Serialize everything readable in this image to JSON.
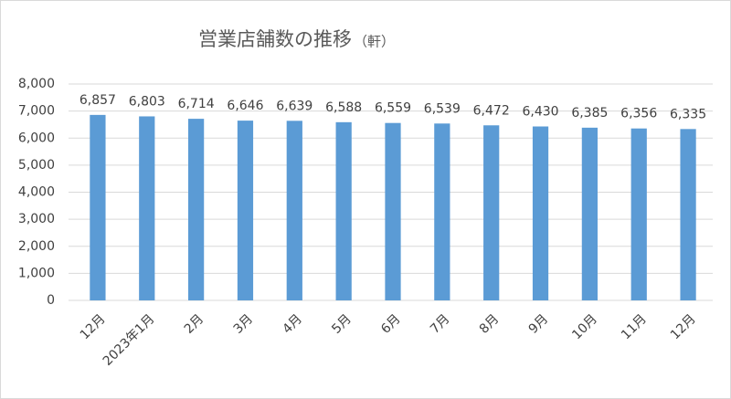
{
  "chart_data": {
    "type": "bar",
    "title": "営業店舗数の推移",
    "unit": "（軒）",
    "categories": [
      "12月",
      "2023年1月",
      "2月",
      "3月",
      "4月",
      "5月",
      "6月",
      "7月",
      "8月",
      "9月",
      "10月",
      "11月",
      "12月"
    ],
    "values": [
      6857,
      6803,
      6714,
      6646,
      6639,
      6588,
      6559,
      6539,
      6472,
      6430,
      6385,
      6356,
      6335
    ],
    "value_labels": [
      "6,857",
      "6,803",
      "6,714",
      "6,646",
      "6,639",
      "6,588",
      "6,559",
      "6,539",
      "6,472",
      "6,430",
      "6,385",
      "6,356",
      "6,335"
    ],
    "color": "#5b9bd5",
    "ylim": [
      0,
      8000
    ],
    "yticks": [
      0,
      {
        "value": 1000,
        "label": "1,000"
      },
      {
        "value": 2000,
        "label": "2,000"
      },
      {
        "value": 3000,
        "label": "3,000"
      },
      {
        "value": 4000,
        "label": "4,000"
      },
      {
        "value": 5000,
        "label": "5,000"
      },
      {
        "value": 6000,
        "label": "6,000"
      },
      {
        "value": 7000,
        "label": "7,000"
      },
      {
        "value": 8000,
        "label": "8,000"
      }
    ],
    "grid": true
  }
}
